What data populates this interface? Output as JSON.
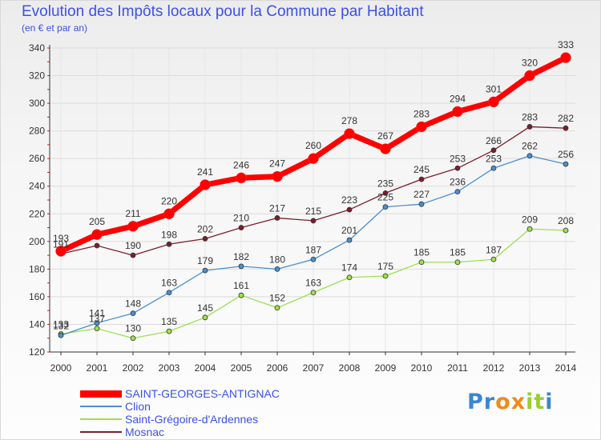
{
  "title": "Evolution des Impôts locaux pour la Commune par Habitant",
  "subtitle": "(en € et par an)",
  "logo": {
    "letters": [
      "P",
      "r",
      "o",
      "x",
      "i",
      "t",
      "i"
    ],
    "colors": [
      "#3a86d4",
      "#3a86d4",
      "#f08a1c",
      "#f08a1c",
      "#9acd32",
      "#9acd32",
      "#3a86d4"
    ]
  },
  "chart_data": {
    "type": "line",
    "title": "Evolution des Impôts locaux pour la Commune par Habitant",
    "ylabel": "(en € et par an)",
    "xlabel": "",
    "x": [
      "2000",
      "2001",
      "2002",
      "2003",
      "2004",
      "2005",
      "2006",
      "2007",
      "2008",
      "2009",
      "2010",
      "2011",
      "2012",
      "2013",
      "2014"
    ],
    "ylim": [
      120,
      340
    ],
    "yticks": [
      120,
      140,
      160,
      180,
      200,
      220,
      240,
      260,
      280,
      300,
      320,
      340
    ],
    "grid": true,
    "legend_position": "bottom-left",
    "series": [
      {
        "name": "Mosnac",
        "color": "#7a1f2b",
        "values": [
          191,
          197,
          190,
          198,
          202,
          210,
          217,
          215,
          223,
          235,
          245,
          253,
          266,
          283,
          282
        ],
        "labels": [
          "191",
          "",
          "190",
          "198",
          "202",
          "210",
          "217",
          "215",
          "223",
          "235",
          "245",
          "253",
          "266",
          "283",
          "282"
        ]
      },
      {
        "name": "Saint-Grégoire-d'Ardennes",
        "color": "#9ee04f",
        "values": [
          133,
          137,
          130,
          135,
          145,
          161,
          152,
          163,
          174,
          175,
          185,
          185,
          187,
          209,
          208
        ],
        "labels": [
          "133",
          "137",
          "130",
          "135",
          "145",
          "161",
          "152",
          "163",
          "174",
          "175",
          "185",
          "185",
          "187",
          "209",
          "208"
        ]
      },
      {
        "name": "Clion",
        "color": "#4a8fd0",
        "values": [
          132,
          141,
          148,
          163,
          179,
          182,
          180,
          187,
          201,
          225,
          227,
          236,
          253,
          262,
          256
        ],
        "labels": [
          "132",
          "141",
          "148",
          "163",
          "179",
          "182",
          "180",
          "187",
          "201",
          "225",
          "227",
          "236",
          "253",
          "262",
          "256"
        ]
      },
      {
        "name": "SAINT-GEORGES-ANTIGNAC",
        "color": "#ff0000",
        "values": [
          193,
          205,
          211,
          220,
          241,
          246,
          247,
          260,
          278,
          267,
          283,
          294,
          301,
          320,
          333
        ],
        "labels": [
          "193",
          "205",
          "211",
          "220",
          "241",
          "246",
          "247",
          "260",
          "278",
          "267",
          "283",
          "294",
          "301",
          "320",
          "333"
        ]
      }
    ],
    "legend": [
      "SAINT-GEORGES-ANTIGNAC",
      "Clion",
      "Saint-Grégoire-d'Ardennes",
      "Mosnac"
    ]
  }
}
